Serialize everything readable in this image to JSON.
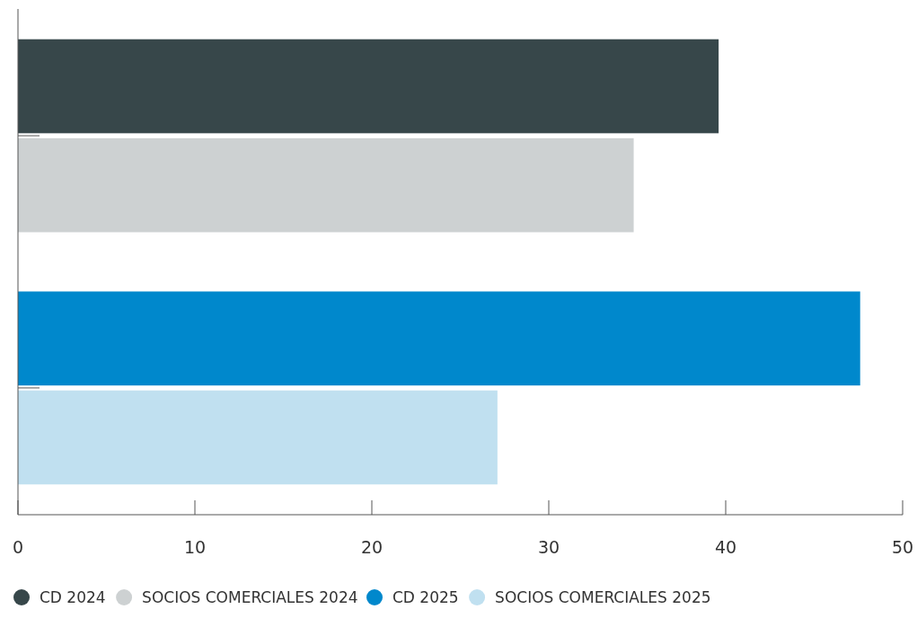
{
  "chart_data": {
    "type": "bar",
    "orientation": "horizontal",
    "categories": [
      null,
      null
    ],
    "series": [
      {
        "name": "CD 2024",
        "color": "#37474a",
        "values": [
          39.6,
          null
        ]
      },
      {
        "name": "SOCIOS COMERCIALES 2024",
        "color": "#cdd1d2",
        "values": [
          34.8,
          null
        ]
      },
      {
        "name": "CD 2025",
        "color": "#0088cc",
        "values": [
          null,
          47.6
        ]
      },
      {
        "name": "SOCIOS COMERCIALES 2025",
        "color": "#c0e0f0",
        "values": [
          null,
          27.1
        ]
      }
    ],
    "xlim": [
      0,
      50
    ],
    "xticks": [
      0,
      10,
      20,
      30,
      40,
      50
    ],
    "grid": false,
    "legend": "bottom"
  }
}
